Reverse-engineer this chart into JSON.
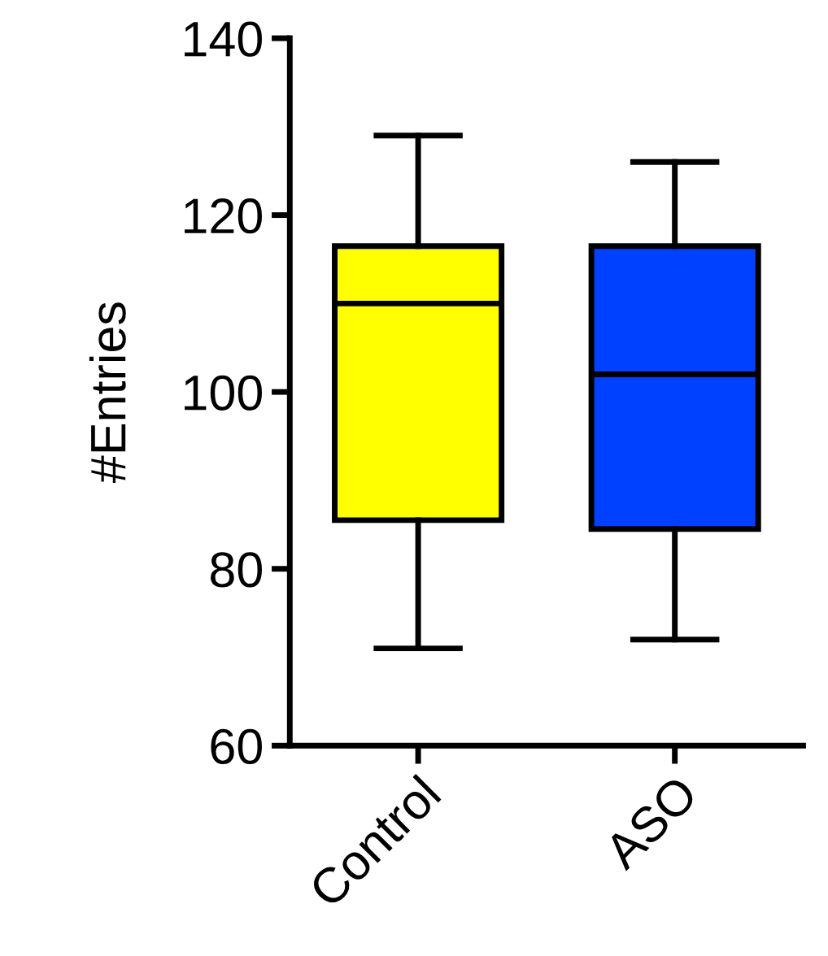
{
  "chart_data": {
    "type": "box",
    "ylabel": "#Entries",
    "categories": [
      "Control",
      "ASO"
    ],
    "colors": [
      "#ffff00",
      "#0040ff"
    ],
    "boxes": [
      {
        "low": 71,
        "q1": 85.5,
        "median": 110,
        "q3": 116.5,
        "high": 129
      },
      {
        "low": 72,
        "q1": 84.5,
        "median": 102,
        "q3": 116.5,
        "high": 126
      }
    ],
    "ylim": [
      60,
      140
    ],
    "yticks": [
      60,
      80,
      100,
      120,
      140
    ],
    "grid": false
  }
}
